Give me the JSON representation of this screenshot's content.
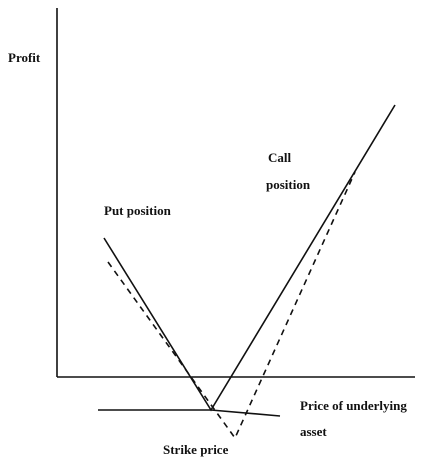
{
  "labels": {
    "y_axis": "Profit",
    "put": "Put position",
    "call_line1": "Call",
    "call_line2": "position",
    "x_axis_line1": "Price of underlying",
    "x_axis_line2": "asset",
    "strike": "Strike price"
  }
}
